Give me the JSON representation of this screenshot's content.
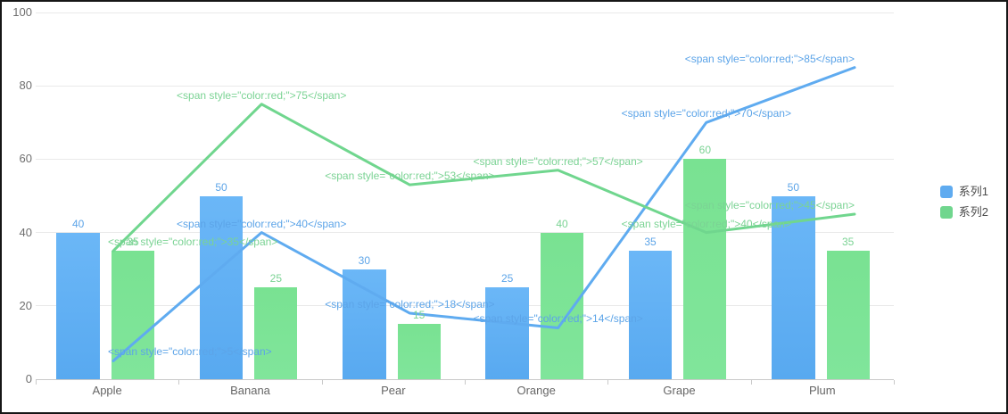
{
  "chart_data": {
    "type": "bar",
    "subtype": "bar-line-combo",
    "title": "",
    "xlabel": "",
    "ylabel": "",
    "grid": true,
    "legend_position": "right-middle",
    "ylim": [
      0,
      100
    ],
    "ytick_labels": [
      "0",
      "20",
      "40",
      "60",
      "80",
      "100"
    ],
    "categories": [
      "Apple",
      "Banana",
      "Pear",
      "Orange",
      "Grape",
      "Plum"
    ],
    "series": [
      {
        "name": "系列1",
        "type": "bar",
        "color_top": "#6bb7f7",
        "color_bottom": "#58a9f0",
        "label_color": "#5ca4e8",
        "values": [
          40,
          50,
          30,
          25,
          35,
          50
        ],
        "labels": [
          "40",
          "50",
          "30",
          "25",
          "35",
          "50"
        ]
      },
      {
        "name": "系列2",
        "type": "bar",
        "color_top": "#79e292",
        "color_bottom": "#80e59b",
        "label_color": "#7bd394",
        "values": [
          35,
          25,
          15,
          40,
          60,
          35
        ],
        "labels": [
          "35",
          "25",
          "15",
          "40",
          "60",
          "35"
        ]
      },
      {
        "name": "系列1",
        "type": "line",
        "color": "#5fabf0",
        "label_color": "#5ca4e8",
        "values": [
          5,
          40,
          18,
          14,
          70,
          85
        ],
        "labels": [
          "<span style=\"color:red;\">5</span>",
          "<span style=\"color:red;\">40</span>",
          "<span style=\"color:red;\">18</span>",
          "<span style=\"color:red;\">14</span>",
          "<span style=\"color:red;\">70</span>",
          "<span style=\"color:red;\">85</span>"
        ]
      },
      {
        "name": "系列2",
        "type": "line",
        "color": "#70d68e",
        "label_color": "#7bd394",
        "values": [
          35,
          75,
          53,
          57,
          40,
          45
        ],
        "labels": [
          "<span style=\"color:red;\">35</span>",
          "<span style=\"color:red;\">75</span>",
          "<span style=\"color:red;\">53</span>",
          "<span style=\"color:red;\">57</span>",
          "<span style=\"color:red;\">40</span>",
          "<span style=\"color:red;\">45</span>"
        ]
      }
    ],
    "legend": [
      {
        "label": "系列1",
        "color": "#5fabf0"
      },
      {
        "label": "系列2",
        "color": "#70d68e"
      }
    ]
  }
}
